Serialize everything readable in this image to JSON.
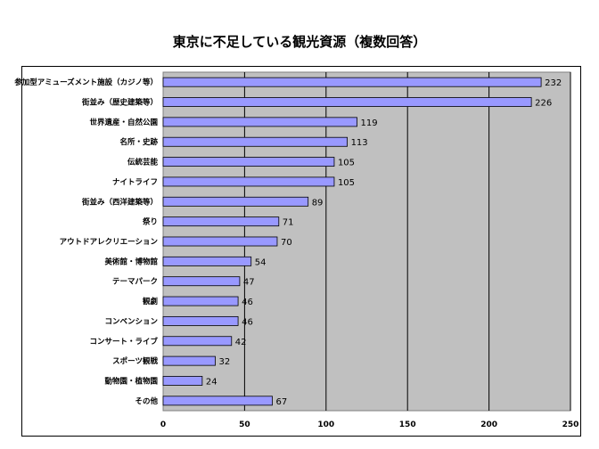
{
  "chart_data": {
    "type": "bar",
    "orientation": "horizontal",
    "title": "東京に不足している観光資源（複数回答）",
    "categories": [
      "参加型アミューズメント施設（カジノ等）",
      "街並み（歴史建築等）",
      "世界遺産・自然公園",
      "名所・史跡",
      "伝統芸能",
      "ナイトライフ",
      "街並み（西洋建築等）",
      "祭り",
      "アウトドアレクリエーション",
      "美術館・博物館",
      "テーマパーク",
      "観劇",
      "コンベンション",
      "コンサート・ライブ",
      "スポーツ観戦",
      "動物園・植物園",
      "その他"
    ],
    "values": [
      232,
      226,
      119,
      113,
      105,
      105,
      89,
      71,
      70,
      54,
      47,
      46,
      46,
      42,
      32,
      24,
      67
    ],
    "xlim": [
      0,
      250
    ],
    "xticks": [
      "0",
      "50",
      "100",
      "150",
      "200",
      "250"
    ],
    "grid": true,
    "legend": "none",
    "colors": {
      "bar": "#9999ff",
      "bar_stroke": "#000000",
      "plot_bg": "#c0c0c0",
      "grid": "#000000"
    }
  }
}
